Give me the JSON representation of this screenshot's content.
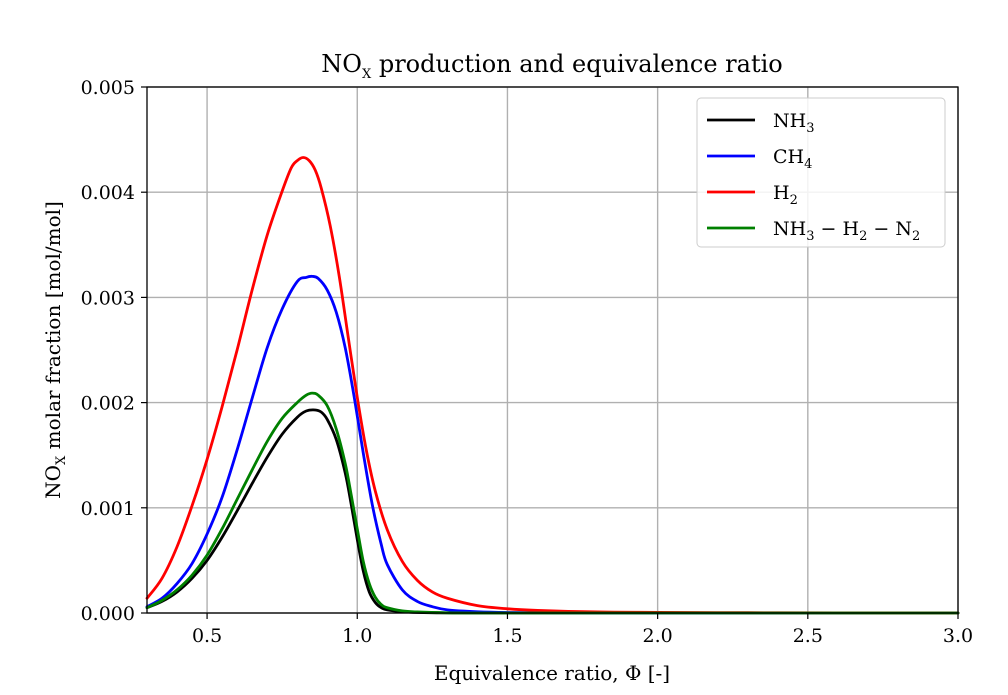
{
  "chart_data": {
    "type": "line",
    "title": "NOx production and equivalence ratio",
    "title_base": "NO",
    "title_sub": "X",
    "title_rest": " production and equivalence ratio",
    "xlabel": "Equivalence ratio, Φ [-]",
    "ylabel": "NOx molar fraction [mol/mol]",
    "ylabel_base": "NO",
    "ylabel_sub": "X",
    "ylabel_rest": " molar fraction [mol/mol]",
    "xlim": [
      0.3,
      3.0
    ],
    "ylim": [
      0,
      0.005
    ],
    "x_ticks": [
      0.5,
      1.0,
      1.5,
      2.0,
      2.5,
      3.0
    ],
    "x_tick_labels": [
      "0.5",
      "1.0",
      "1.5",
      "2.0",
      "2.5",
      "3.0"
    ],
    "y_ticks": [
      0,
      0.001,
      0.002,
      0.003,
      0.004,
      0.005
    ],
    "y_tick_labels": [
      "0.000",
      "0.001",
      "0.002",
      "0.003",
      "0.004",
      "0.005"
    ],
    "grid": true,
    "legend_position": "top-right",
    "series": [
      {
        "name": "NH3",
        "label_parts": [
          {
            "t": "NH"
          },
          {
            "t": "3",
            "sub": true
          }
        ],
        "color": "#000000",
        "x": [
          0.3,
          0.35,
          0.4,
          0.45,
          0.5,
          0.55,
          0.6,
          0.65,
          0.7,
          0.75,
          0.8,
          0.83,
          0.86,
          0.88,
          0.9,
          0.93,
          0.96,
          0.98,
          1.0,
          1.02,
          1.04,
          1.06,
          1.08,
          1.1,
          1.15,
          1.2,
          1.3,
          1.4,
          1.5,
          2.0,
          2.5,
          3.0
        ],
        "values": [
          5e-05,
          0.00011,
          0.0002,
          0.00033,
          0.0005,
          0.00072,
          0.00097,
          0.00123,
          0.00148,
          0.0017,
          0.00186,
          0.00192,
          0.00193,
          0.00191,
          0.00184,
          0.00165,
          0.00133,
          0.00103,
          0.0007,
          0.0004,
          0.0002,
          0.0001,
          5e-05,
          3e-05,
          1.2e-05,
          5e-06,
          1e-06,
          0,
          0,
          0,
          0,
          0
        ]
      },
      {
        "name": "CH4",
        "label_parts": [
          {
            "t": "CH"
          },
          {
            "t": "4",
            "sub": true
          }
        ],
        "color": "#0000ff",
        "x": [
          0.3,
          0.35,
          0.4,
          0.45,
          0.5,
          0.55,
          0.6,
          0.65,
          0.7,
          0.75,
          0.8,
          0.83,
          0.85,
          0.87,
          0.9,
          0.93,
          0.96,
          0.99,
          1.02,
          1.05,
          1.08,
          1.1,
          1.15,
          1.2,
          1.25,
          1.3,
          1.4,
          1.5,
          1.7,
          2.0,
          2.5,
          3.0
        ],
        "values": [
          6e-05,
          0.00014,
          0.00028,
          0.00047,
          0.00075,
          0.0011,
          0.00155,
          0.00204,
          0.00252,
          0.00289,
          0.00315,
          0.00319,
          0.0032,
          0.00318,
          0.00307,
          0.00286,
          0.00252,
          0.00205,
          0.00152,
          0.00103,
          0.00065,
          0.00046,
          0.00022,
          0.00011,
          6e-05,
          3e-05,
          1.2e-05,
          5e-06,
          1e-06,
          0,
          0,
          0
        ]
      },
      {
        "name": "H2",
        "label_parts": [
          {
            "t": "H"
          },
          {
            "t": "2",
            "sub": true
          }
        ],
        "color": "#ff0000",
        "x": [
          0.3,
          0.35,
          0.4,
          0.45,
          0.5,
          0.55,
          0.6,
          0.65,
          0.7,
          0.75,
          0.78,
          0.8,
          0.82,
          0.84,
          0.86,
          0.88,
          0.91,
          0.94,
          0.97,
          1.0,
          1.03,
          1.06,
          1.1,
          1.15,
          1.2,
          1.25,
          1.3,
          1.4,
          1.5,
          1.6,
          1.8,
          2.0,
          2.3,
          2.6,
          3.0
        ],
        "values": [
          0.00014,
          0.00033,
          0.00063,
          0.00102,
          0.00146,
          0.00196,
          0.0025,
          0.00307,
          0.00359,
          0.00401,
          0.00423,
          0.0043,
          0.00433,
          0.0043,
          0.00421,
          0.00404,
          0.00368,
          0.0032,
          0.00262,
          0.00205,
          0.00155,
          0.00116,
          0.00079,
          0.00049,
          0.00031,
          0.0002,
          0.00014,
          7e-05,
          4e-05,
          2.5e-05,
          1e-05,
          6e-06,
          3e-06,
          1e-06,
          0
        ]
      },
      {
        "name": "NH3 − H2 − N2",
        "label_parts": [
          {
            "t": "NH"
          },
          {
            "t": "3",
            "sub": true
          },
          {
            "t": " − H"
          },
          {
            "t": "2",
            "sub": true
          },
          {
            "t": " − N"
          },
          {
            "t": "2",
            "sub": true
          }
        ],
        "color": "#008000",
        "x": [
          0.3,
          0.35,
          0.4,
          0.45,
          0.5,
          0.55,
          0.6,
          0.65,
          0.7,
          0.75,
          0.8,
          0.83,
          0.85,
          0.87,
          0.9,
          0.93,
          0.96,
          0.98,
          1.0,
          1.02,
          1.04,
          1.06,
          1.08,
          1.1,
          1.15,
          1.2,
          1.3,
          1.4,
          1.5,
          2.0,
          2.5,
          3.0
        ],
        "values": [
          5e-05,
          0.00012,
          0.00022,
          0.00036,
          0.00055,
          0.0008,
          0.00108,
          0.00136,
          0.00163,
          0.00185,
          0.002,
          0.00207,
          0.00209,
          0.00207,
          0.00197,
          0.00175,
          0.00142,
          0.00112,
          0.0008,
          0.00049,
          0.00028,
          0.00015,
          8e-05,
          5e-05,
          2e-05,
          1e-05,
          2e-06,
          0,
          0,
          0,
          0,
          0
        ]
      }
    ]
  }
}
